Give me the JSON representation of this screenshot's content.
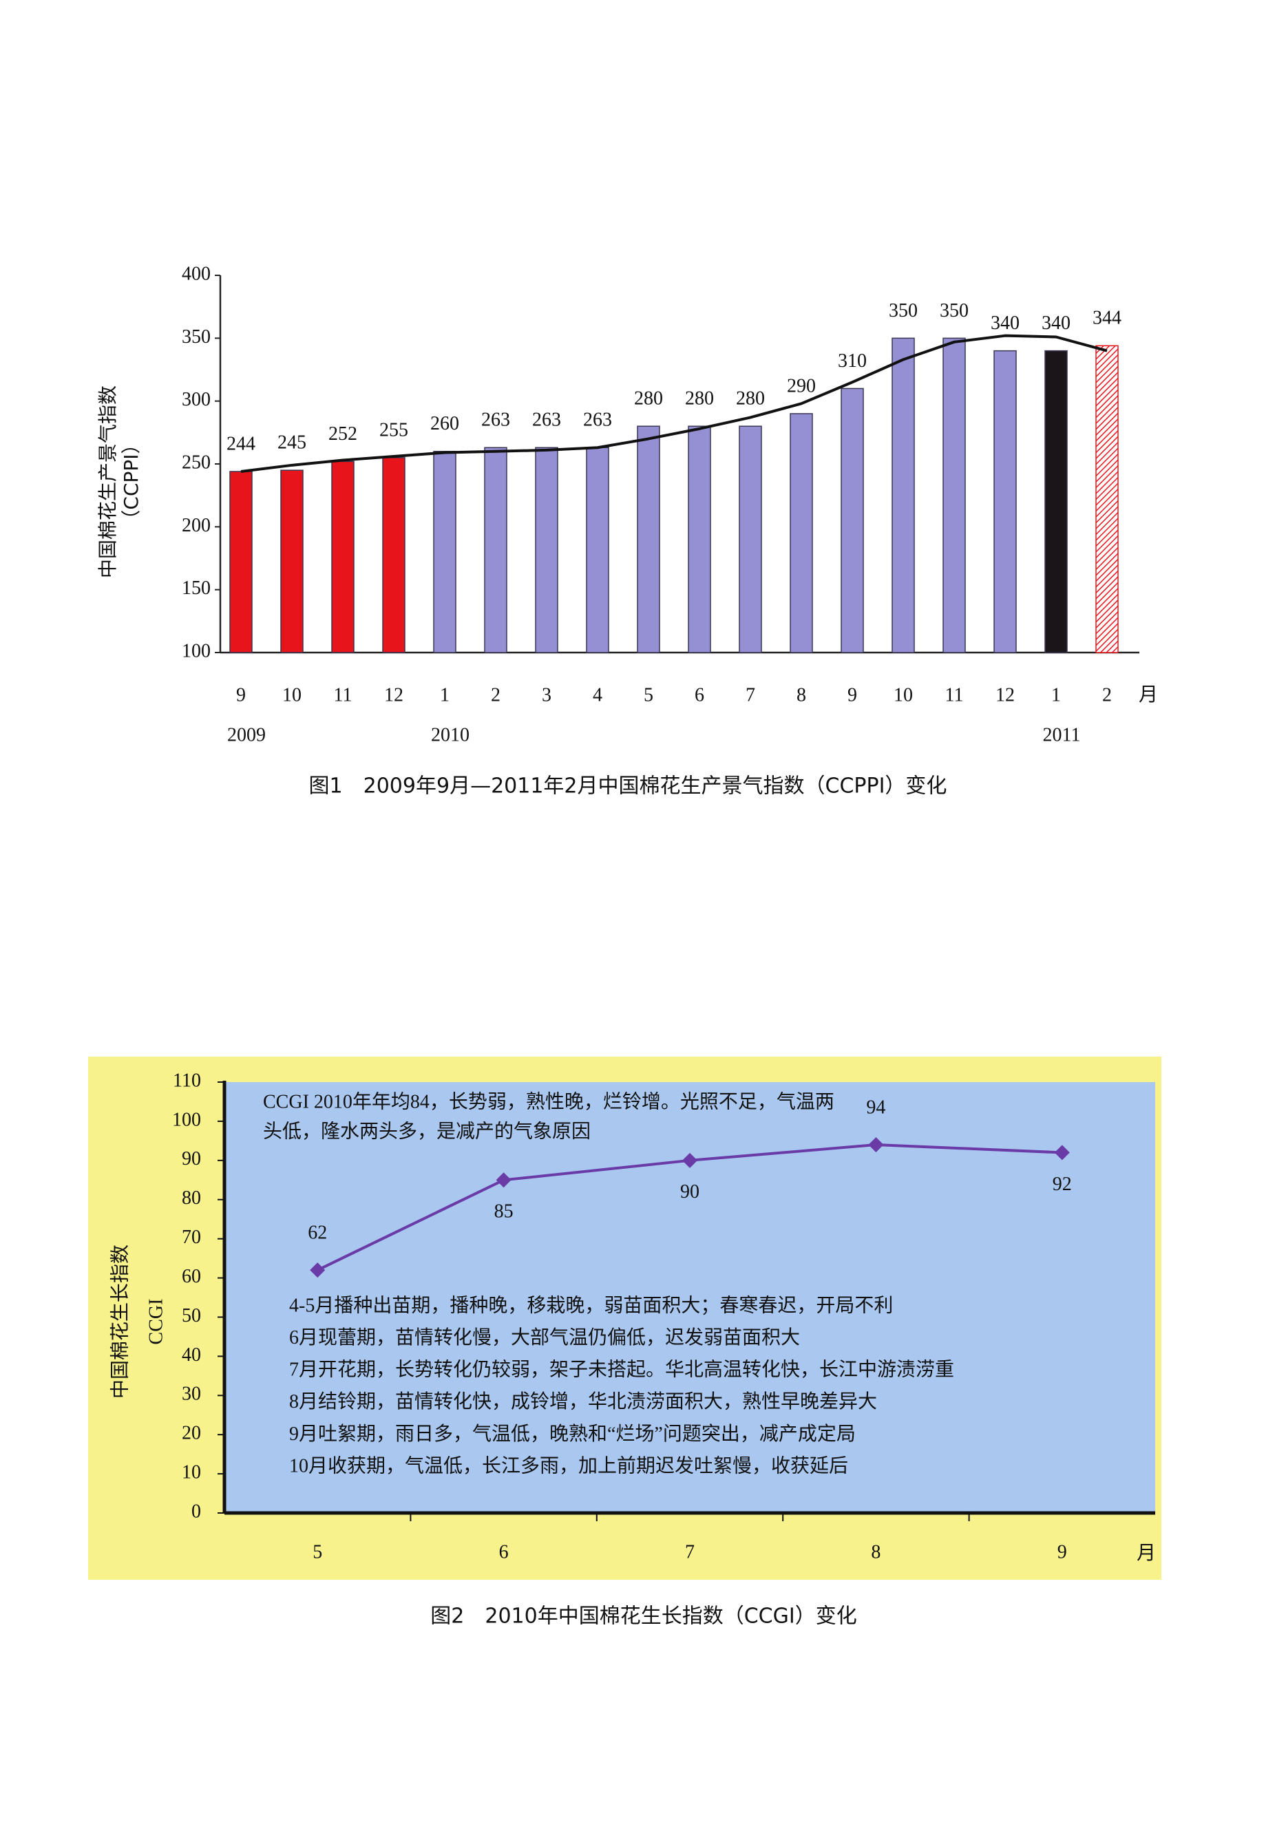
{
  "chart_data": [
    {
      "type": "bar",
      "caption": "图1　2009年9月—2011年2月中国棉花生产景气指数（CCPPI）变化",
      "ylabel": [
        "中国棉花生产景气指数",
        "（CCPPI）"
      ],
      "categories": [
        "9",
        "10",
        "11",
        "12",
        "1",
        "2",
        "3",
        "4",
        "5",
        "6",
        "7",
        "8",
        "9",
        "10",
        "11",
        "12",
        "1",
        "2"
      ],
      "year_labels": [
        "2009",
        null,
        null,
        null,
        "2010",
        null,
        null,
        null,
        null,
        null,
        null,
        null,
        null,
        null,
        null,
        null,
        "2011",
        null
      ],
      "x_unit": "月",
      "values": [
        244,
        245,
        252,
        255,
        260,
        263,
        263,
        263,
        280,
        280,
        280,
        290,
        310,
        350,
        350,
        340,
        340,
        344
      ],
      "colors": [
        "#e8141b",
        "#e8141b",
        "#e8141b",
        "#e8141b",
        "#9590d4",
        "#9590d4",
        "#9590d4",
        "#9590d4",
        "#9590d4",
        "#9590d4",
        "#9590d4",
        "#9590d4",
        "#9590d4",
        "#9590d4",
        "#9590d4",
        "#9590d4",
        "#1b1419",
        "#e8141b"
      ],
      "patterns": [
        "solid",
        "solid",
        "solid",
        "solid",
        "solid",
        "solid",
        "solid",
        "solid",
        "solid",
        "solid",
        "solid",
        "solid",
        "solid",
        "solid",
        "solid",
        "solid",
        "solid",
        "hatch"
      ],
      "value_label_colors": [
        "#d42020",
        "#d42020",
        "#d42020",
        "#d42020",
        "#111111",
        "#111111",
        "#111111",
        "#111111",
        "#111111",
        "#111111",
        "#111111",
        "#111111",
        "#111111",
        "#111111",
        "#111111",
        "#111111",
        "#3b2a80",
        "#d42020"
      ],
      "line_values": [
        244,
        249,
        253,
        256,
        259,
        260,
        261,
        263,
        270,
        278,
        287,
        298,
        315,
        333,
        347,
        352,
        351,
        340
      ],
      "line_color": "#111111",
      "ylim": [
        100,
        400
      ],
      "yticks": [
        100,
        150,
        200,
        250,
        300,
        350,
        400
      ]
    },
    {
      "type": "line",
      "caption": "图2　2010年中国棉花生长指数（CCGI）变化",
      "ylabel": [
        "中国棉花生长指数",
        "CCGI"
      ],
      "ylabel_color": "#e8141b",
      "annotation": [
        "CCGI 2010年年均84，长势弱，熟性晚，烂铃增。光照不足，气温两",
        "头低，隆水两头多，是减产的气象原因"
      ],
      "notes": [
        "4-5月播种出苗期，播种晚，移栽晚，弱苗面积大；春寒春迟，开局不利",
        "6月现蕾期，苗情转化慢，大部气温仍偏低，迟发弱苗面积大",
        "7月开花期，长势转化仍较弱，架子未搭起。华北高温转化快，长江中游渍涝重",
        "8月结铃期，苗情转化快，成铃增，华北渍涝面积大，熟性早晚差异大",
        "9月吐絮期，雨日多，气温低，晚熟和“烂场”问题突出，减产成定局",
        "10月收获期，气温低，长江多雨，加上前期迟发吐絮慢，收获延后"
      ],
      "categories": [
        "5",
        "6",
        "7",
        "8",
        "9"
      ],
      "x_unit": "月",
      "values": [
        62,
        85,
        90,
        94,
        92
      ],
      "color": "#6a3aa6",
      "label_color": "#e02020",
      "label_positions": [
        "above",
        "below",
        "below",
        "above",
        "below"
      ],
      "background": "#f7f28c",
      "plot_background": "#a9c7ef",
      "ylim": [
        0,
        110
      ],
      "yticks": [
        0,
        10,
        20,
        30,
        40,
        50,
        60,
        70,
        80,
        90,
        100,
        110
      ]
    }
  ]
}
